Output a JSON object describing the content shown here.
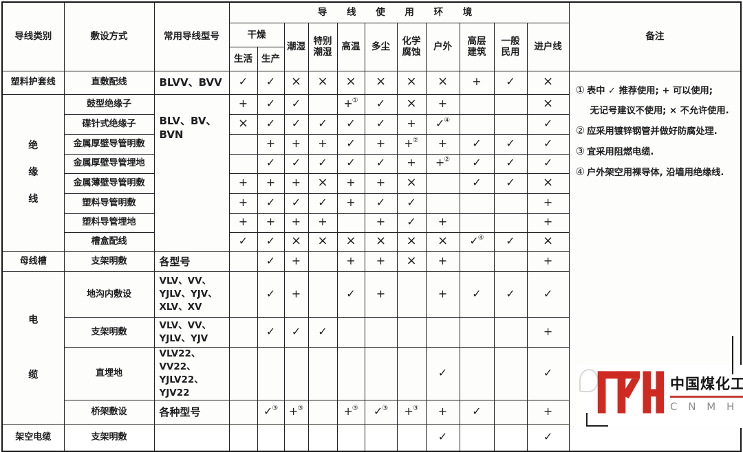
{
  "table": {
    "headers": {
      "category": "导线类别",
      "method": "敷设方式",
      "model": "常用导线型号",
      "env_title": "导 线 使 用 环 境",
      "dry": "干燥",
      "living": "生活",
      "production": "生产",
      "damp": "潮湿",
      "very_damp": "特别\n潮湿",
      "high_temp": "高温",
      "dusty": "多尘",
      "chemical": "化学\n腐蚀",
      "outdoor": "户外",
      "highrise": "高层\n建筑",
      "civil": "一般\n民用",
      "entry": "进户线",
      "remarks": "备注"
    },
    "env_column_keys": [
      "生活",
      "生产",
      "潮湿",
      "特别潮湿",
      "高温",
      "多尘",
      "化学腐蚀",
      "户外",
      "高层建筑",
      "一般民用",
      "进户线"
    ],
    "rows": [
      {
        "category": "塑料护套线",
        "cat_span": 1,
        "method": "直敷配线",
        "model": "BLVV、BVV",
        "model_span": 1,
        "cells": [
          "✓",
          "✓",
          "×",
          "×",
          "×",
          "×",
          "×",
          "×",
          "+",
          "✓",
          "×"
        ]
      },
      {
        "category": "绝\n缘\n线",
        "cat_span": 8,
        "cat_class": "vstack3",
        "method": "鼓型绝缘子",
        "model": "BLV、BV、\nBVN",
        "model_span": 8,
        "model_class": "model toppad",
        "cells": [
          "+",
          "✓",
          "✓",
          "",
          "+①",
          "✓",
          "×",
          "+",
          "",
          "",
          "×"
        ]
      },
      {
        "method": "碟针式绝缘子",
        "cells": [
          "×",
          "✓",
          "✓",
          "✓",
          "✓",
          "✓",
          "+",
          "✓④",
          "",
          "",
          "✓"
        ]
      },
      {
        "method": "金属厚壁导管明敷",
        "cells": [
          "",
          "+",
          "+",
          "+",
          "✓",
          "+",
          "+②",
          "+",
          "✓",
          "✓",
          "✓"
        ]
      },
      {
        "method": "金属厚壁导管埋地",
        "cells": [
          "",
          "✓",
          "✓",
          "✓",
          "✓",
          "✓",
          "+",
          "+②",
          "✓",
          "✓",
          "✓"
        ]
      },
      {
        "method": "金属薄壁导管明敷",
        "cells": [
          "+",
          "+",
          "+",
          "×",
          "+",
          "+",
          "×",
          "",
          "✓",
          "✓",
          "×"
        ]
      },
      {
        "method": "塑料导管明敷",
        "cells": [
          "+",
          "✓",
          "✓",
          "✓",
          "+",
          "✓",
          "✓",
          "",
          "",
          "",
          "+"
        ]
      },
      {
        "method": "塑料导管埋地",
        "cells": [
          "+",
          "+",
          "+",
          "+",
          "",
          "+",
          "✓",
          "+",
          "",
          "",
          "+"
        ]
      },
      {
        "method": "槽盒配线",
        "cells": [
          "✓",
          "✓",
          "×",
          "×",
          "×",
          "×",
          "×",
          "×",
          "✓④",
          "✓",
          "×"
        ]
      },
      {
        "category": "母线槽",
        "cat_span": 1,
        "method": "支架明敷",
        "model": "各型号",
        "model_span": 1,
        "cells": [
          "",
          "✓",
          "+",
          "",
          "+",
          "+",
          "×",
          "+",
          "",
          "",
          "+"
        ]
      },
      {
        "category": "电\n缆",
        "cat_span": 4,
        "cat_class": "vstack2",
        "method": "地沟内敷设",
        "model": "VLV、VV、\nYJLV、YJV、\nXLV、XV",
        "model_span": 1,
        "model_class": "model small",
        "cells": [
          "",
          "✓",
          "+",
          "",
          "✓",
          "+",
          "",
          "+",
          "✓",
          "✓",
          "✓"
        ]
      },
      {
        "method": "支架明敷",
        "model": "VLV、VV、\nYJLV、YJV",
        "model_span": 1,
        "model_class": "model small",
        "cells": [
          "",
          "✓",
          "✓",
          "✓",
          "",
          "",
          "",
          "",
          "",
          "",
          "+"
        ]
      },
      {
        "method": "直埋地",
        "model": "VLV22、VV22、\nYJLV22、YJV22",
        "model_span": 1,
        "model_class": "model small",
        "cells": [
          "",
          "",
          "",
          "",
          "",
          "",
          "",
          "✓",
          "",
          "",
          "✓"
        ]
      },
      {
        "method": "桥架敷设",
        "model": "各种型号",
        "model_span": 1,
        "cells": [
          "",
          "✓③",
          "+③",
          "",
          "+③",
          "✓③",
          "+③",
          "+",
          "✓",
          "",
          "+"
        ]
      },
      {
        "category": "架空电缆",
        "cat_span": 1,
        "method": "支架明敷",
        "model": "",
        "model_span": 1,
        "cells": [
          "",
          "",
          "",
          "",
          "",
          "",
          "",
          "✓",
          "",
          "",
          "✓"
        ]
      }
    ],
    "remarks_notes": [
      {
        "num": "①",
        "text": "表中 ✓ 推荐使用; + 可以使用;",
        "cont": false
      },
      {
        "num": "",
        "text": "无记号建议不使用; × 不允许使用.",
        "cont": true
      },
      {
        "num": "②",
        "text": "应采用镀锌钢管并做好防腐处理.",
        "cont": false
      },
      {
        "num": "③",
        "text": "宜采用阻燃电缆.",
        "cont": false
      },
      {
        "num": "④",
        "text": "户外架空用裸导体, 沿墙用绝缘线.",
        "cont": false
      }
    ],
    "symbol_legend": {
      "check": "✓",
      "plus": "+",
      "cross": "×"
    }
  },
  "logo": {
    "company": "中国煤化工",
    "abbr": "C N M H G",
    "mark": "MYH-monogram",
    "accent_color": "#cf2a22"
  }
}
